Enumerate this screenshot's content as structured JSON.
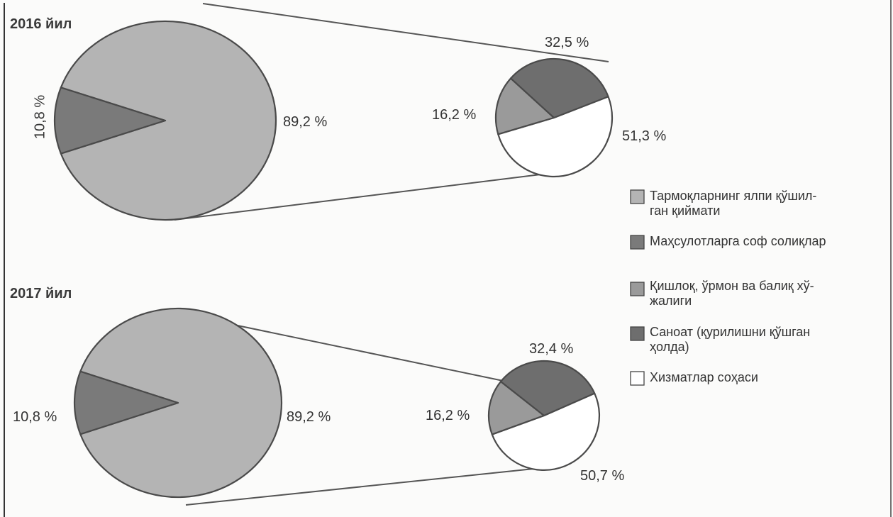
{
  "colors": {
    "big_main": "#b4b4b4",
    "big_taxes": "#7a7a7a",
    "agri": "#9a9a9a",
    "industry": "#6e6e6e",
    "services": "#ffffff",
    "stroke": "#4a4a4a",
    "connector": "#555555"
  },
  "chart_data": {
    "type": "pie",
    "subtype": "bar-of-pie / pie-of-pie",
    "legend": {
      "placement": "right",
      "items": [
        {
          "key": "gva",
          "lines": [
            "Тармоқларнинг ялпи қўшил-",
            "ган қиймати"
          ],
          "color": "#b4b4b4"
        },
        {
          "key": "taxes",
          "lines": [
            "Маҳсулотларга соф солиқлар"
          ],
          "color": "#7a7a7a"
        },
        {
          "key": "agri",
          "lines": [
            "Қишлоқ, ўрмон ва балиқ хў-",
            "жалиги"
          ],
          "color": "#9a9a9a"
        },
        {
          "key": "industry",
          "lines": [
            "Саноат (қурилишни қўшган",
            "ҳолда)"
          ],
          "color": "#6e6e6e"
        },
        {
          "key": "services",
          "lines": [
            "Хизматлар соҳаси"
          ],
          "color": "#ffffff"
        }
      ]
    },
    "charts": [
      {
        "title": "2016 йил",
        "main_pie": [
          {
            "key": "gva",
            "value": 89.2,
            "label": "89,2 %"
          },
          {
            "key": "taxes",
            "value": 10.8,
            "label": "10,8 %"
          }
        ],
        "breakdown_pie": [
          {
            "key": "industry",
            "value": 32.5,
            "label": "32,5 %"
          },
          {
            "key": "agri",
            "value": 16.2,
            "label": "16,2 %"
          },
          {
            "key": "services",
            "value": 51.3,
            "label": "51,3 %"
          }
        ]
      },
      {
        "title": "2017 йил",
        "main_pie": [
          {
            "key": "gva",
            "value": 89.2,
            "label": "89,2 %"
          },
          {
            "key": "taxes",
            "value": 10.8,
            "label": "10,8 %"
          }
        ],
        "breakdown_pie": [
          {
            "key": "industry",
            "value": 32.4,
            "label": "32,4 %"
          },
          {
            "key": "agri",
            "value": 16.2,
            "label": "16,2 %"
          },
          {
            "key": "services",
            "value": 50.7,
            "label": "50,7 %"
          }
        ]
      }
    ]
  }
}
